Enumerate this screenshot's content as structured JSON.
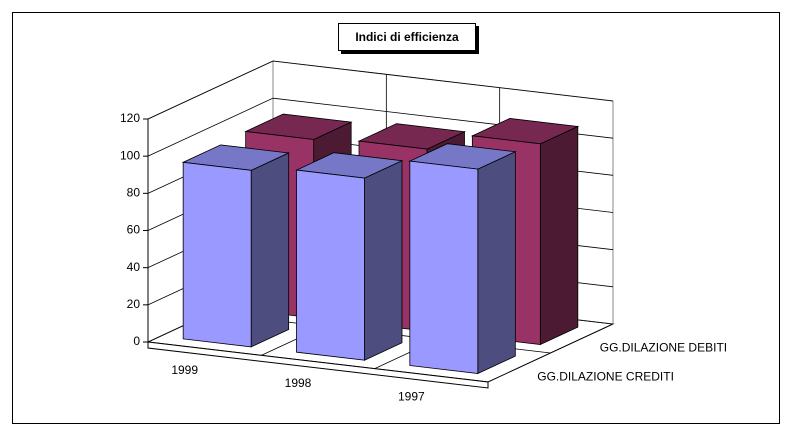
{
  "chart_data": {
    "type": "bar3d",
    "title": "Indici di efficienza",
    "categories": [
      "1999",
      "1998",
      "1997"
    ],
    "series": [
      {
        "name": "GG.DILAZIONE CREDITI",
        "color": "#9999ff",
        "values": [
          95,
          98,
          110
        ]
      },
      {
        "name": "GG.DILAZIONE DEBITI",
        "color": "#993366",
        "values": [
          96,
          98,
          108
        ]
      }
    ],
    "ylim": [
      0,
      120
    ],
    "yticks": [
      0,
      20,
      40,
      60,
      80,
      100,
      120
    ],
    "grid": true
  }
}
